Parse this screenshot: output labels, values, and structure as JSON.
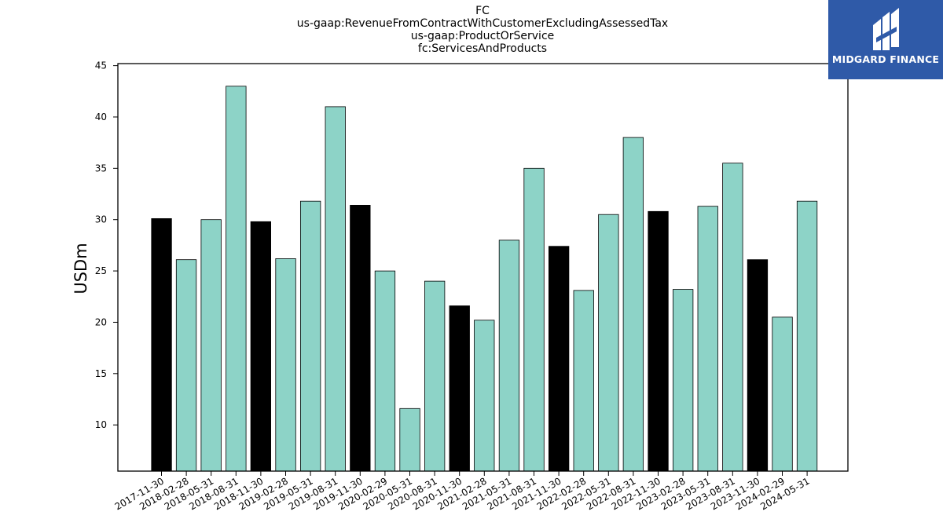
{
  "header": {
    "lines": [
      "FC",
      "us-gaap:RevenueFromContractWithCustomerExcludingAssessedTax",
      "us-gaap:ProductOrService",
      "fc:ServicesAndProducts"
    ]
  },
  "logo": {
    "text": "MIDGARD FINANCE",
    "icon": "midgard-logo-icon",
    "background": "#2f5aa8"
  },
  "chart_data": {
    "type": "bar",
    "title": "",
    "xlabel": "",
    "ylabel": "USDm",
    "ylim": [
      5.5,
      45.2
    ],
    "yticks": [
      10,
      15,
      20,
      25,
      30,
      35,
      40,
      45
    ],
    "grid": false,
    "colors": {
      "fiscal_year_end": "#000000",
      "quarter": "#8dd3c7"
    },
    "categories": [
      "2017-11-30",
      "2018-02-28",
      "2018-05-31",
      "2018-08-31",
      "2018-11-30",
      "2019-02-28",
      "2019-05-31",
      "2019-08-31",
      "2019-11-30",
      "2020-02-29",
      "2020-05-31",
      "2020-08-31",
      "2020-11-30",
      "2021-02-28",
      "2021-05-31",
      "2021-08-31",
      "2021-11-30",
      "2022-02-28",
      "2022-05-31",
      "2022-08-31",
      "2022-11-30",
      "2023-02-28",
      "2023-05-31",
      "2023-08-31",
      "2023-11-30",
      "2024-02-29",
      "2024-05-31"
    ],
    "values": [
      30.1,
      26.1,
      30.0,
      43.0,
      29.8,
      26.2,
      31.8,
      41.0,
      31.4,
      25.0,
      11.6,
      24.0,
      21.6,
      20.2,
      28.0,
      35.0,
      27.4,
      23.1,
      30.5,
      38.0,
      30.8,
      23.2,
      31.3,
      35.5,
      26.1,
      20.5,
      31.8
    ],
    "highlight": [
      true,
      false,
      false,
      false,
      true,
      false,
      false,
      false,
      true,
      false,
      false,
      false,
      true,
      false,
      false,
      false,
      true,
      false,
      false,
      false,
      true,
      false,
      false,
      false,
      true,
      false,
      false
    ]
  }
}
